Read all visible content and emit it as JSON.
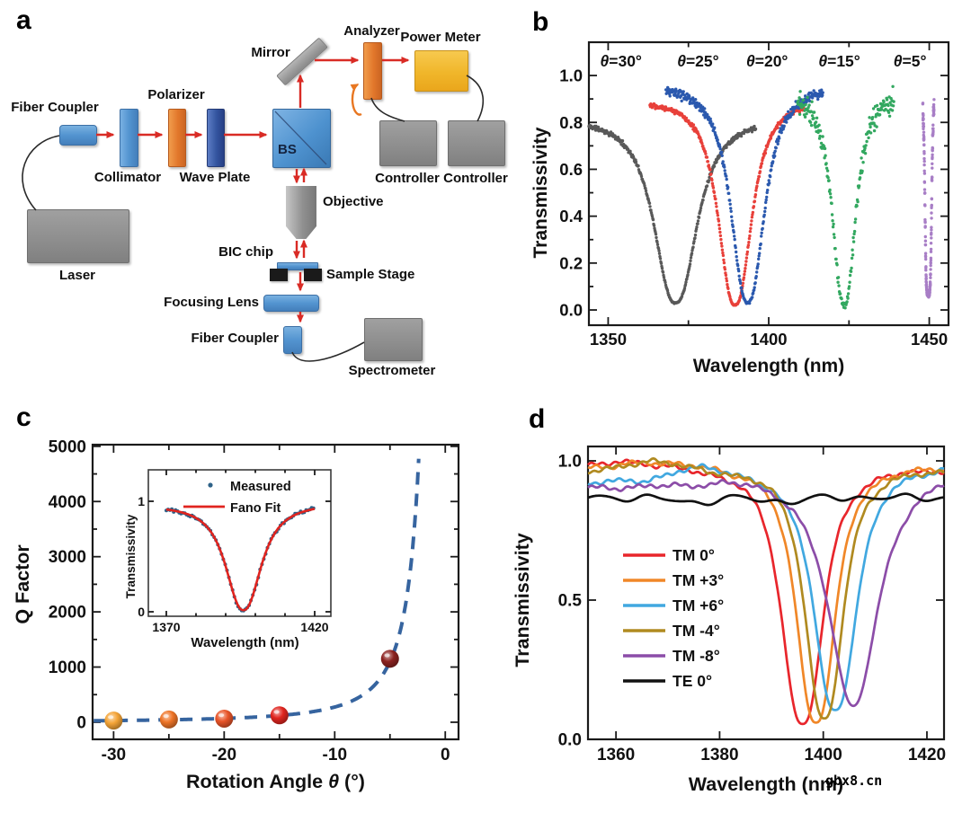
{
  "watermark": "gbx8.cn",
  "panels": {
    "a": {
      "label": "a",
      "components": {
        "fiber_coupler_1": "Fiber Coupler",
        "laser": "Laser",
        "collimator": "Collimator",
        "polarizer": "Polarizer",
        "wave_plate": "Wave Plate",
        "bs": "BS",
        "mirror": "Mirror",
        "analyzer": "Analyzer",
        "power_meter": "Power Meter",
        "controller_1": "Controller",
        "controller_2": "Controller",
        "objective": "Objective",
        "bic_chip": "BIC chip",
        "sample_stage": "Sample Stage",
        "focusing_lens": "Focusing Lens",
        "fiber_coupler_2": "Fiber Coupler",
        "spectrometer": "Spectrometer"
      }
    },
    "b": {
      "label": "b"
    },
    "c": {
      "label": "c"
    },
    "d": {
      "label": "d"
    }
  },
  "chart_data": [
    {
      "id": "b",
      "type": "scatter",
      "xlabel": "Wavelength (nm)",
      "ylabel": "Transmissivity",
      "xlim": [
        1344,
        1456
      ],
      "ylim": [
        -0.065,
        1.142
      ],
      "xticks": [
        1350,
        1400,
        1450
      ],
      "xminor": [
        1375,
        1425
      ],
      "yticks": [
        0.0,
        0.2,
        0.4,
        0.6,
        0.8,
        1.0
      ],
      "yminor": [
        0.1,
        0.3,
        0.5,
        0.7,
        0.9
      ],
      "series": [
        {
          "label": "θ=30°",
          "color": "#595959",
          "label_x": 1354,
          "dip_nm": 1371.0,
          "min_T": 0.03,
          "shoulder_T": 0.82,
          "span": [
            1344,
            1396
          ],
          "width_nm": 7.7,
          "exp": 2.4,
          "noise": 0.012,
          "seed": 11
        },
        {
          "label": "θ=25°",
          "color": "#e8403a",
          "label_x": 1378,
          "dip_nm": 1389.5,
          "min_T": 0.02,
          "shoulder_T": 0.9,
          "span": [
            1363,
            1411
          ],
          "width_nm": 6.0,
          "exp": 2.4,
          "noise": 0.012,
          "seed": 22
        },
        {
          "label": "θ=20°",
          "color": "#2b59ae",
          "label_x": 1399.5,
          "dip_nm": 1393.5,
          "min_T": 0.03,
          "shoulder_T": 0.96,
          "span": [
            1368,
            1417
          ],
          "width_nm": 6.0,
          "exp": 2.4,
          "noise": 0.02,
          "seed": 33
        },
        {
          "label": "θ=15°",
          "color": "#33a860",
          "label_x": 1422,
          "dip_nm": 1423.5,
          "min_T": 0.02,
          "shoulder_T": 0.93,
          "span": [
            1409,
            1439
          ],
          "width_nm": 4.2,
          "exp": 2.4,
          "noise": 0.055,
          "seed": 44
        },
        {
          "label": "θ=5°",
          "color": "#a87ec6",
          "label_x": 1444,
          "dip_nm": 1449.7,
          "min_T": 0.07,
          "shoulder_T": 0.95,
          "span": [
            1448,
            1451.5
          ],
          "width_nm": 1.1,
          "exp": 5.0,
          "noise": 0.05,
          "seed": 55
        }
      ]
    },
    {
      "id": "c",
      "type": "scatter+curve",
      "xlabel_parts": [
        "Rotation Angle ",
        "θ",
        " (°)"
      ],
      "ylabel": "Q Factor",
      "xlim": [
        -31.9,
        1.2
      ],
      "ylim": [
        -310,
        5030
      ],
      "xticks": [
        -30,
        -20,
        -10,
        0
      ],
      "xminor": [
        -25,
        -15,
        -5
      ],
      "yticks": [
        0,
        1000,
        2000,
        3000,
        4000,
        5000
      ],
      "yminor": [
        500,
        1500,
        2500,
        3500,
        4500
      ],
      "points": [
        {
          "angle": -30,
          "q": 30,
          "color": "#f4a437"
        },
        {
          "angle": -25,
          "q": 50,
          "color": "#ee7426"
        },
        {
          "angle": -20,
          "q": 65,
          "color": "#e85428"
        },
        {
          "angle": -15,
          "q": 125,
          "color": "#e0251f"
        },
        {
          "angle": -5,
          "q": 1150,
          "color": "#8c2220"
        }
      ],
      "fit_curve": {
        "formula": "Q = 27500 / θ²",
        "color": "#36649f",
        "style": "dashed"
      },
      "inset": {
        "legend": [
          {
            "label": "Measured",
            "marker": "dot",
            "color": "#2e6288"
          },
          {
            "label": "Fano Fit",
            "marker": "line",
            "color": "#e0241f"
          }
        ],
        "xlabel": "Wavelength (nm)",
        "ylabel": "Transmissivity",
        "xticks": [
          1370,
          1420
        ],
        "xminor": [
          1380,
          1390,
          1400,
          1410
        ],
        "yticks": [
          0,
          1
        ],
        "dip_nm": 1396,
        "min_T": 0.015,
        "base_T": 0.97,
        "width_nm": 7,
        "noise": 0.016,
        "seed": 77
      }
    },
    {
      "id": "d",
      "type": "line",
      "xlabel": "Wavelength (nm)",
      "ylabel": "Transmissivity",
      "xlim": [
        1354.6,
        1423.3
      ],
      "ylim": [
        0,
        1.0516
      ],
      "xticks": [
        1360,
        1380,
        1400,
        1420
      ],
      "yticks": [
        0.0,
        0.5,
        1.0
      ],
      "series": [
        {
          "label": "TM 0°",
          "color": "#e8262c",
          "dip_nm": 1396.0,
          "min_T": 0.055,
          "width_nm": 4.6,
          "base_T": 0.975,
          "hump": [
            0.025,
            1363,
            9
          ],
          "slope": 0,
          "exp": 2.6,
          "seed": 3
        },
        {
          "label": "TM +3°",
          "color": "#f08728",
          "dip_nm": 1398.6,
          "min_T": 0.06,
          "width_nm": 4.3,
          "base_T": 0.98,
          "hump": [
            0.02,
            1369,
            8
          ],
          "slope": 0,
          "exp": 2.6,
          "seed": 5
        },
        {
          "label": "TM +6°",
          "color": "#41a8e0",
          "dip_nm": 1402.3,
          "min_T": 0.105,
          "width_nm": 4.7,
          "base_T": 0.955,
          "hump": [
            0.045,
            1377,
            7
          ],
          "slope": 0.0009,
          "exp": 2.6,
          "seed": 7
        },
        {
          "label": "TM -4°",
          "color": "#b08a20",
          "dip_nm": 1400.2,
          "min_T": 0.075,
          "width_nm": 4.2,
          "base_T": 0.97,
          "hump": [
            0.035,
            1368,
            6
          ],
          "slope": 0,
          "exp": 2.6,
          "seed": 9
        },
        {
          "label": "TM -8°",
          "color": "#8c4da8",
          "dip_nm": 1405.8,
          "min_T": 0.12,
          "width_nm": 5.6,
          "base_T": 0.945,
          "hump": [
            0.02,
            1386,
            8
          ],
          "slope": 0.0011,
          "exp": 2.2,
          "seed": 13
        },
        {
          "label": "TE 0°",
          "color": "#111111",
          "flat_T": 0.868,
          "dips": [
            [
              0.018,
              1375,
              5
            ],
            [
              0.015,
              1392,
              5
            ]
          ],
          "noise": 0.015,
          "seed": 17
        }
      ]
    }
  ]
}
